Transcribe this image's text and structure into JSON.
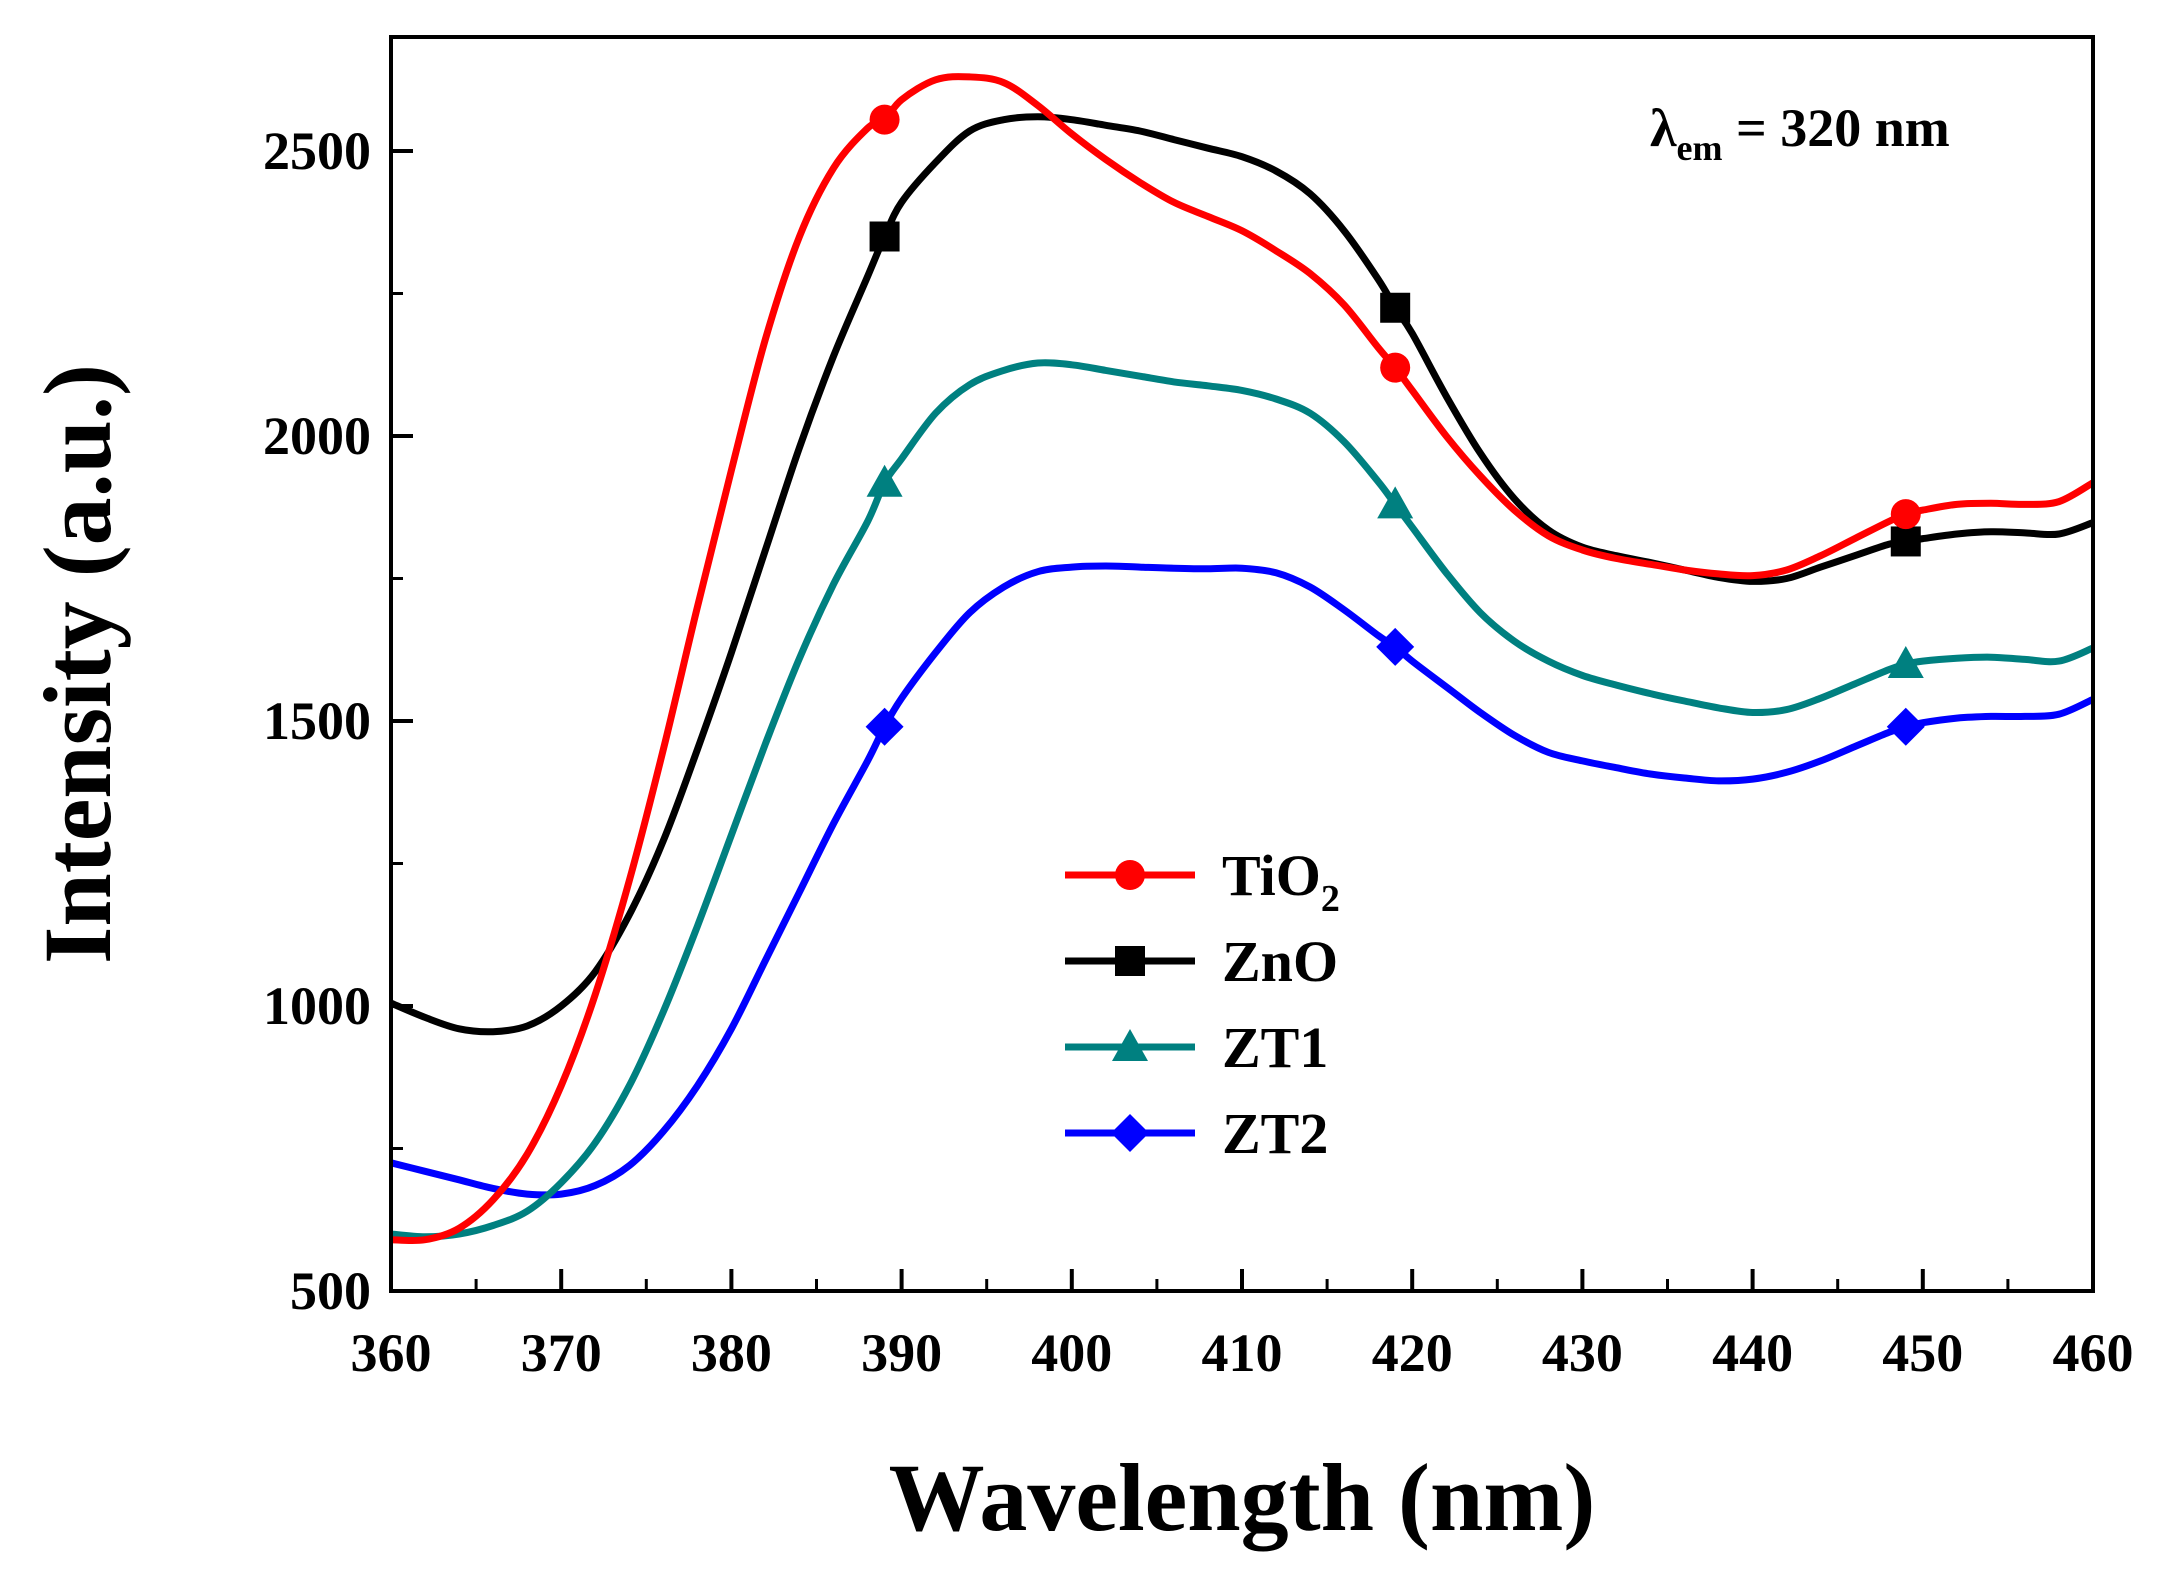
{
  "chart_data": {
    "type": "line",
    "title": "",
    "xlabel": "Wavelength (nm)",
    "ylabel": "Intensity (a.u.)",
    "xlim": [
      360,
      460
    ],
    "ylim": [
      500,
      2700
    ],
    "xticks": [
      360,
      370,
      380,
      390,
      400,
      410,
      420,
      430,
      440,
      450,
      460
    ],
    "yticks": [
      500,
      1000,
      1500,
      2000,
      2500
    ],
    "annotation": {
      "lambda": "λ",
      "subscript": "em",
      "rest": " = 320 nm"
    },
    "x": [
      360,
      362,
      364,
      366,
      368,
      370,
      372,
      374,
      376,
      378,
      380,
      382,
      384,
      386,
      388,
      389,
      390,
      392,
      394,
      396,
      398,
      400,
      402,
      404,
      406,
      408,
      410,
      412,
      414,
      416,
      418,
      419,
      420,
      422,
      424,
      426,
      428,
      430,
      432,
      434,
      436,
      438,
      440,
      442,
      444,
      446,
      448,
      449,
      450,
      452,
      454,
      456,
      458,
      460
    ],
    "series": [
      {
        "name": "TiO",
        "sub": "2",
        "color": "#ff0000",
        "marker": "circle",
        "values": [
          590,
          590,
          610,
          660,
          740,
          860,
          1020,
          1220,
          1450,
          1700,
          1940,
          2170,
          2350,
          2470,
          2540,
          2555,
          2590,
          2625,
          2630,
          2620,
          2580,
          2530,
          2485,
          2445,
          2410,
          2385,
          2360,
          2325,
          2285,
          2230,
          2155,
          2120,
          2080,
          2000,
          1930,
          1870,
          1825,
          1800,
          1785,
          1775,
          1765,
          1758,
          1755,
          1765,
          1790,
          1820,
          1850,
          1863,
          1870,
          1880,
          1882,
          1880,
          1885,
          1918
        ]
      },
      {
        "name": "ZnO",
        "sub": "",
        "color": "#000000",
        "marker": "square",
        "values": [
          1005,
          980,
          960,
          955,
          965,
          1000,
          1060,
          1160,
          1290,
          1450,
          1620,
          1800,
          1980,
          2140,
          2280,
          2350,
          2410,
          2480,
          2535,
          2555,
          2560,
          2555,
          2545,
          2535,
          2520,
          2505,
          2490,
          2465,
          2425,
          2360,
          2275,
          2225,
          2180,
          2070,
          1970,
          1890,
          1835,
          1805,
          1790,
          1778,
          1765,
          1752,
          1745,
          1750,
          1770,
          1790,
          1810,
          1815,
          1820,
          1828,
          1832,
          1830,
          1828,
          1848
        ]
      },
      {
        "name": "ZT1",
        "sub": "",
        "color": "#008080",
        "marker": "triangle",
        "values": [
          600,
          595,
          600,
          615,
          640,
          690,
          760,
          860,
          990,
          1140,
          1300,
          1460,
          1610,
          1740,
          1850,
          1918,
          1960,
          2040,
          2090,
          2115,
          2128,
          2125,
          2115,
          2105,
          2095,
          2088,
          2080,
          2065,
          2040,
          1990,
          1920,
          1880,
          1840,
          1760,
          1690,
          1640,
          1605,
          1580,
          1563,
          1548,
          1535,
          1523,
          1515,
          1520,
          1540,
          1565,
          1590,
          1600,
          1605,
          1610,
          1612,
          1608,
          1605,
          1628
        ]
      },
      {
        "name": "ZT2",
        "sub": "",
        "color": "#0000ff",
        "marker": "diamond",
        "values": [
          725,
          710,
          695,
          680,
          670,
          670,
          685,
          720,
          780,
          860,
          960,
          1080,
          1200,
          1320,
          1430,
          1490,
          1540,
          1620,
          1690,
          1735,
          1762,
          1770,
          1772,
          1770,
          1768,
          1767,
          1768,
          1760,
          1735,
          1695,
          1650,
          1630,
          1605,
          1560,
          1515,
          1475,
          1445,
          1430,
          1418,
          1407,
          1400,
          1395,
          1398,
          1410,
          1430,
          1455,
          1480,
          1490,
          1497,
          1505,
          1508,
          1508,
          1512,
          1538
        ]
      }
    ],
    "marker_x": [
      389,
      419,
      449
    ],
    "legend_position": "center"
  }
}
